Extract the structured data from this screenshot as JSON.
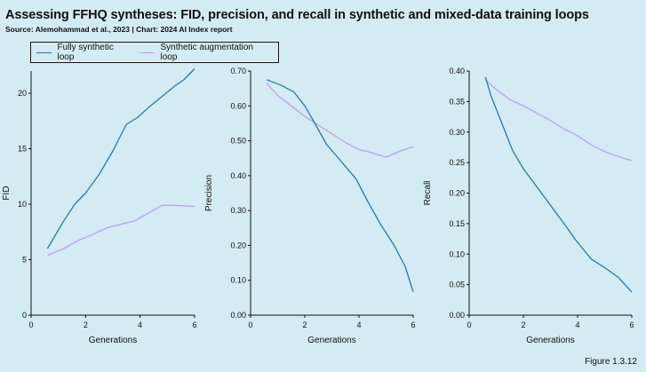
{
  "header": {
    "title": "Assessing FFHQ syntheses: FID, precision, and recall in synthetic and mixed-data training loops",
    "subtitle": "Source: Alemohammad et al., 2023 | Chart: 2024 AI Index report"
  },
  "legend": {
    "items": [
      {
        "label": "Fully synthetic loop",
        "color": "#2a7aa8"
      },
      {
        "label": "Synthetic augmentation loop",
        "color": "#b9a3ee"
      }
    ]
  },
  "figure_label": "Figure 1.3.12",
  "chart_data": [
    {
      "type": "line",
      "title": "",
      "xlabel": "Generations",
      "ylabel": "FID",
      "xlim": [
        0,
        6
      ],
      "ylim": [
        0,
        22
      ],
      "xticks": [
        0,
        2,
        4,
        6
      ],
      "yticks": [
        0,
        5,
        10,
        15,
        20
      ],
      "tick_labels_y": [
        "0",
        "5",
        "10",
        "15",
        "20"
      ],
      "tick_labels_x": [
        "0",
        "2",
        "4",
        "6"
      ],
      "series": [
        {
          "name": "Fully synthetic loop",
          "color": "#2a7aa8",
          "x": [
            0.6,
            1.2,
            1.6,
            2.0,
            2.5,
            3.0,
            3.5,
            3.9,
            4.3,
            4.8,
            5.3,
            5.6,
            6.0
          ],
          "y": [
            6.0,
            8.5,
            10.0,
            11.0,
            12.7,
            14.8,
            17.2,
            17.8,
            18.7,
            19.7,
            20.7,
            21.2,
            22.2
          ]
        },
        {
          "name": "Synthetic augmentation loop",
          "color": "#b9a3ee",
          "x": [
            0.6,
            1.2,
            1.7,
            2.2,
            2.8,
            3.3,
            3.8,
            4.3,
            4.8,
            5.3,
            6.0
          ],
          "y": [
            5.4,
            6.0,
            6.7,
            7.2,
            7.9,
            8.2,
            8.5,
            9.2,
            9.9,
            9.9,
            9.8
          ]
        }
      ]
    },
    {
      "type": "line",
      "title": "",
      "xlabel": "Generations",
      "ylabel": "Precision",
      "xlim": [
        0,
        6
      ],
      "ylim": [
        0,
        0.7
      ],
      "xticks": [
        0,
        2,
        4,
        6
      ],
      "yticks": [
        0,
        0.1,
        0.2,
        0.3,
        0.4,
        0.5,
        0.6,
        0.7
      ],
      "tick_labels_y": [
        "0.00",
        "0.10",
        "0.20",
        "0.30",
        "0.40",
        "0.50",
        "0.60",
        "0.70"
      ],
      "tick_labels_x": [
        "0",
        "2",
        "4",
        "6"
      ],
      "series": [
        {
          "name": "Fully synthetic loop",
          "color": "#2a7aa8",
          "x": [
            0.6,
            1.1,
            1.6,
            2.0,
            2.3,
            2.8,
            3.3,
            3.9,
            4.3,
            4.8,
            5.3,
            5.7,
            6.0
          ],
          "y": [
            0.675,
            0.66,
            0.64,
            0.6,
            0.56,
            0.49,
            0.445,
            0.39,
            0.33,
            0.26,
            0.2,
            0.14,
            0.067
          ]
        },
        {
          "name": "Synthetic augmentation loop",
          "color": "#b9a3ee",
          "x": [
            0.6,
            1.0,
            1.5,
            2.0,
            2.5,
            3.0,
            3.5,
            4.0,
            4.5,
            5.0,
            5.5,
            6.0
          ],
          "y": [
            0.665,
            0.63,
            0.6,
            0.57,
            0.545,
            0.52,
            0.495,
            0.475,
            0.465,
            0.453,
            0.47,
            0.483
          ]
        }
      ]
    },
    {
      "type": "line",
      "title": "",
      "xlabel": "Generations",
      "ylabel": "Recall",
      "xlim": [
        0,
        6
      ],
      "ylim": [
        0,
        0.4
      ],
      "xticks": [
        0,
        2,
        4,
        6
      ],
      "yticks": [
        0,
        0.05,
        0.1,
        0.15,
        0.2,
        0.25,
        0.3,
        0.35,
        0.4
      ],
      "tick_labels_y": [
        "0.00",
        "0.05",
        "0.10",
        "0.15",
        "0.20",
        "0.25",
        "0.30",
        "0.35",
        "0.40"
      ],
      "tick_labels_x": [
        "0",
        "2",
        "4",
        "6"
      ],
      "series": [
        {
          "name": "Fully synthetic loop",
          "color": "#2a7aa8",
          "x": [
            0.6,
            0.8,
            1.2,
            1.6,
            2.0,
            2.5,
            3.0,
            3.5,
            3.9,
            4.5,
            5.0,
            5.5,
            6.0
          ],
          "y": [
            0.39,
            0.36,
            0.315,
            0.27,
            0.24,
            0.21,
            0.18,
            0.15,
            0.125,
            0.092,
            0.078,
            0.062,
            0.038
          ]
        },
        {
          "name": "Synthetic augmentation loop",
          "color": "#b9a3ee",
          "x": [
            0.6,
            1.0,
            1.5,
            2.0,
            2.5,
            3.0,
            3.5,
            4.0,
            4.5,
            5.0,
            5.5,
            6.0
          ],
          "y": [
            0.385,
            0.37,
            0.353,
            0.343,
            0.331,
            0.319,
            0.305,
            0.294,
            0.279,
            0.268,
            0.26,
            0.253
          ]
        }
      ]
    }
  ]
}
